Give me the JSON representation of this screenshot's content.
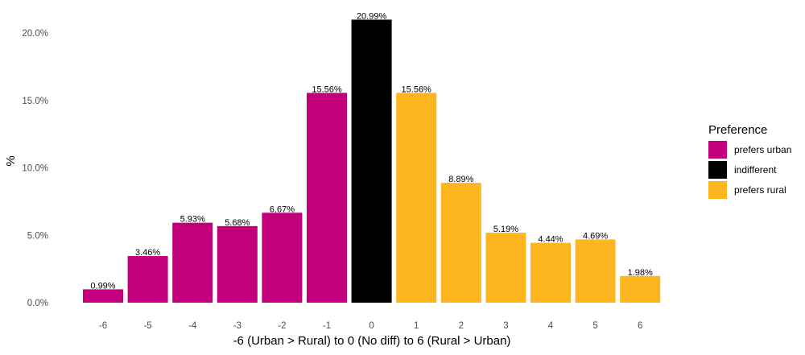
{
  "chart_data": {
    "type": "bar",
    "xlabel": "-6 (Urban > Rural) to 0 (No diff) to 6 (Rural > Urban)",
    "ylabel": "%",
    "ylim": [
      0,
      21
    ],
    "y_ticks": [
      "0.0%",
      "5.0%",
      "10.0%",
      "15.0%",
      "20.0%"
    ],
    "y_tick_values": [
      0,
      5,
      10,
      15,
      20
    ],
    "grid": false,
    "legend_position": "right",
    "legend": {
      "title": "Preference",
      "items": [
        {
          "label": "prefers urban",
          "color": "#C2007B"
        },
        {
          "label": "indifferent",
          "color": "#000000"
        },
        {
          "label": "prefers rural",
          "color": "#FDB620"
        }
      ]
    },
    "categories": [
      "-6",
      "-5",
      "-4",
      "-3",
      "-2",
      "-1",
      "0",
      "1",
      "2",
      "3",
      "4",
      "5",
      "6"
    ],
    "values": [
      0.99,
      3.46,
      5.93,
      5.68,
      6.67,
      15.56,
      20.99,
      15.56,
      8.89,
      5.19,
      4.44,
      4.69,
      1.98
    ],
    "value_labels": [
      "0.99%",
      "3.46%",
      "5.93%",
      "5.68%",
      "6.67%",
      "15.56%",
      "20.99%",
      "15.56%",
      "8.89%",
      "5.19%",
      "4.44%",
      "4.69%",
      "1.98%"
    ],
    "groups": [
      "prefers urban",
      "prefers urban",
      "prefers urban",
      "prefers urban",
      "prefers urban",
      "prefers urban",
      "indifferent",
      "prefers rural",
      "prefers rural",
      "prefers rural",
      "prefers rural",
      "prefers rural",
      "prefers rural"
    ]
  }
}
